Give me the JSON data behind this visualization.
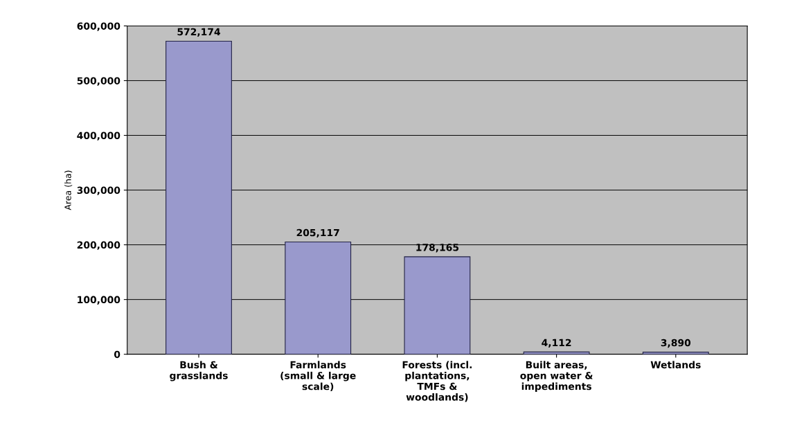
{
  "chart_data": {
    "type": "bar",
    "categories": [
      "Bush &\ngrasslands",
      "Farmlands\n(small & large\nscale)",
      "Forests (incl.\nplantations,\nTMFs &\nwoodlands)",
      "Built areas,\nopen water &\nimpediments",
      "Wetlands"
    ],
    "values": [
      572174,
      205117,
      178165,
      4112,
      3890
    ],
    "color": "#9999cc",
    "ylabel": "Area (ha)",
    "ylim": [
      0,
      600000
    ],
    "yticks": [
      {
        "value": 0,
        "label": "0"
      },
      {
        "value": 100000,
        "label": "100,000"
      },
      {
        "value": 200000,
        "label": "200,000"
      },
      {
        "value": 300000,
        "label": "300,000"
      },
      {
        "value": 400000,
        "label": "400,000"
      },
      {
        "value": 500000,
        "label": "500,000"
      },
      {
        "value": 600000,
        "label": "600,000"
      }
    ],
    "grid": "y",
    "value_labels": [
      "572,174",
      "205,117",
      "178,165",
      "4,112",
      "3,890"
    ]
  }
}
